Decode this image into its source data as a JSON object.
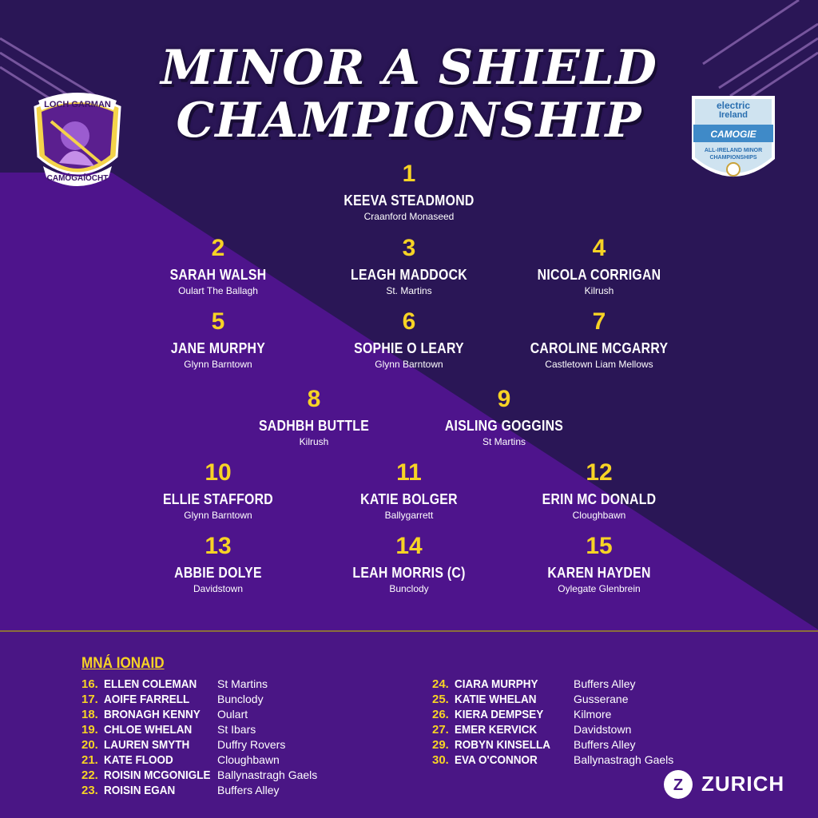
{
  "title": {
    "line1": "MINOR A SHIELD",
    "line2": "CHAMPIONSHIP"
  },
  "logos": {
    "left": {
      "icon": "loch-garman-camogaiocht-crest",
      "top_text": "LOCH GARMAN",
      "bottom_text": "CAMÓGAÍOCHT"
    },
    "right": {
      "icon": "electric-ireland-camogie-badge",
      "line1": "electric",
      "line2": "Ireland",
      "line3": "CAMOGIE",
      "line4": "ALL-IRELAND MINOR",
      "line5": "CHAMPIONSHIPS"
    },
    "sponsor": {
      "icon": "zurich-logo",
      "mark": "Z",
      "text": "ZURICH"
    }
  },
  "colors": {
    "purple_dark": "#2a1656",
    "purple_bright": "#4e148c",
    "gold": "#f7d325",
    "white": "#ffffff"
  },
  "team": [
    {
      "number": "1",
      "name": "KEEVA STEADMOND",
      "club": "Craanford Monaseed"
    },
    {
      "number": "2",
      "name": "SARAH WALSH",
      "club": "Oulart The Ballagh"
    },
    {
      "number": "3",
      "name": "LEAGH MADDOCK",
      "club": "St. Martins"
    },
    {
      "number": "4",
      "name": "NICOLA CORRIGAN",
      "club": "Kilrush"
    },
    {
      "number": "5",
      "name": "JANE MURPHY",
      "club": "Glynn Barntown"
    },
    {
      "number": "6",
      "name": "SOPHIE O LEARY",
      "club": "Glynn Barntown"
    },
    {
      "number": "7",
      "name": "CAROLINE MCGARRY",
      "club": "Castletown Liam Mellows"
    },
    {
      "number": "8",
      "name": "SADHBH BUTTLE",
      "club": "Kilrush"
    },
    {
      "number": "9",
      "name": "AISLING GOGGINS",
      "club": "St Martins"
    },
    {
      "number": "10",
      "name": "ELLIE STAFFORD",
      "club": "Glynn Barntown"
    },
    {
      "number": "11",
      "name": "KATIE BOLGER",
      "club": "Ballygarrett"
    },
    {
      "number": "12",
      "name": "ERIN MC DONALD",
      "club": "Cloughbawn"
    },
    {
      "number": "13",
      "name": "ABBIE DOLYE",
      "club": "Davidstown"
    },
    {
      "number": "14",
      "name": "LEAH MORRIS (C)",
      "club": "Bunclody"
    },
    {
      "number": "15",
      "name": "KAREN HAYDEN",
      "club": "Oylegate Glenbrein"
    }
  ],
  "subs": {
    "heading": "MNÁ IONAID",
    "left": [
      {
        "number": "16.",
        "name": "ELLEN COLEMAN",
        "club": "St Martins"
      },
      {
        "number": "17.",
        "name": "AOIFE FARRELL",
        "club": "Bunclody"
      },
      {
        "number": "18.",
        "name": "BRONAGH KENNY",
        "club": "Oulart"
      },
      {
        "number": "19.",
        "name": "CHLOE WHELAN",
        "club": "St Ibars"
      },
      {
        "number": "20.",
        "name": "LAUREN SMYTH",
        "club": "Duffry Rovers"
      },
      {
        "number": "21.",
        "name": "KATE FLOOD",
        "club": "Cloughbawn"
      },
      {
        "number": "22.",
        "name": "ROISIN MCGONIGLE",
        "club": "Ballynastragh Gaels"
      },
      {
        "number": "23.",
        "name": "ROISIN EGAN",
        "club": "Buffers Alley"
      }
    ],
    "right": [
      {
        "number": "24.",
        "name": "CIARA MURPHY",
        "club": "Buffers Alley"
      },
      {
        "number": "25.",
        "name": "KATIE WHELAN",
        "club": "Gusserane"
      },
      {
        "number": "26.",
        "name": "KIERA DEMPSEY",
        "club": "Kilmore"
      },
      {
        "number": "27.",
        "name": "EMER KERVICK",
        "club": "Davidstown"
      },
      {
        "number": "29.",
        "name": "ROBYN KINSELLA",
        "club": "Buffers Alley"
      },
      {
        "number": "30.",
        "name": "EVA O'CONNOR",
        "club": "Ballynastragh Gaels"
      }
    ]
  }
}
